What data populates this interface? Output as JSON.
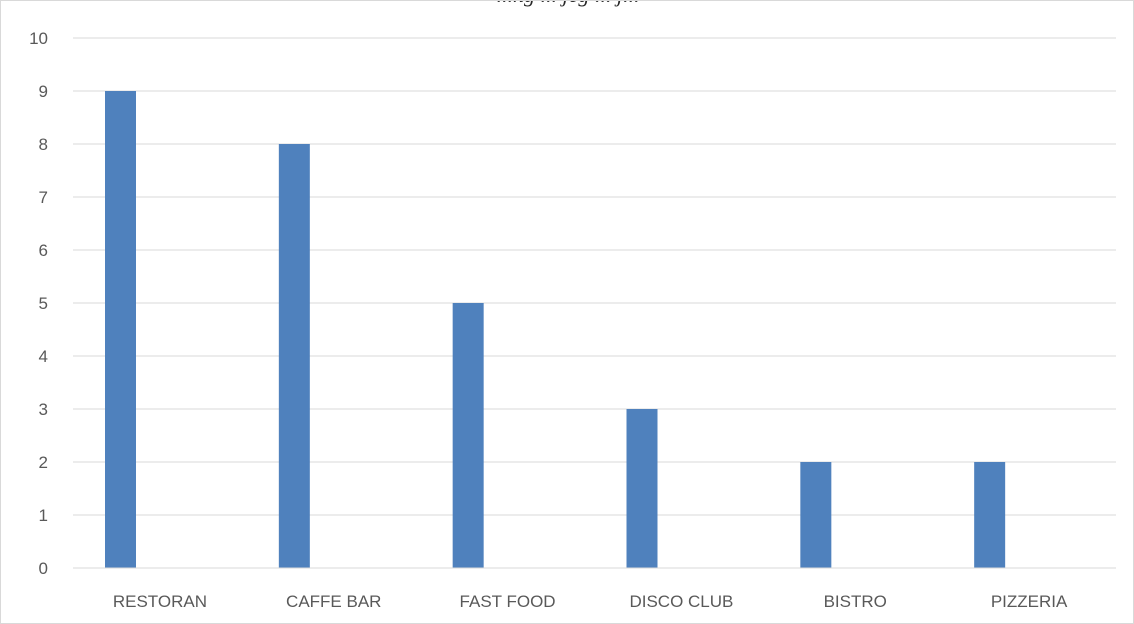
{
  "chart_data": {
    "type": "bar",
    "title": "...ng ... jeg ... j...",
    "categories": [
      "RESTORAN",
      "CAFFE BAR",
      "FAST FOOD",
      "DISCO CLUB",
      "BISTRO",
      "PIZZERIA"
    ],
    "series": [
      {
        "values": [
          9,
          8,
          5,
          3,
          2,
          2
        ]
      }
    ],
    "yticks": [
      "0",
      "1",
      "2",
      "3",
      "4",
      "5",
      "6",
      "7",
      "8",
      "9",
      "10"
    ],
    "ylim": [
      0,
      10
    ],
    "xlabel": "",
    "ylabel": "",
    "grid": true,
    "legend": "none",
    "colors": {
      "bar": "#4f81bd",
      "grid": "#d9d9d9",
      "axis": "#d9d9d9",
      "text": "#595959"
    }
  }
}
